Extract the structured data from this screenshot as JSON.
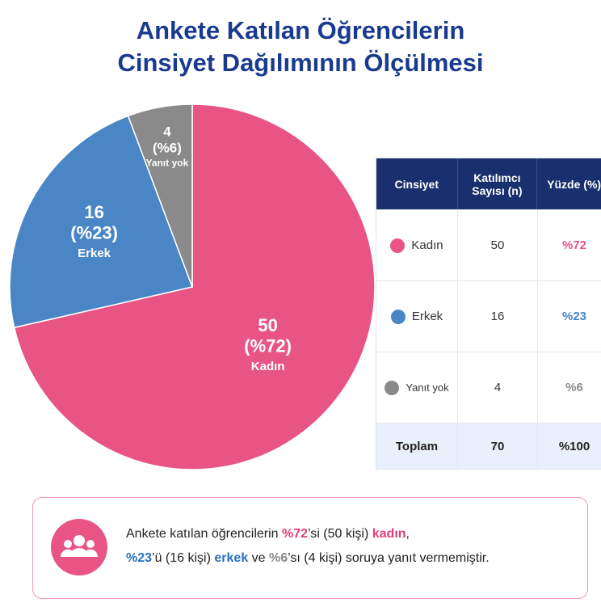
{
  "chart_data": {
    "type": "pie",
    "title": [
      "Ankete Katılan Öğrencilerin",
      "Cinsiyet Dağılımının Ölçülmesi"
    ],
    "categories": [
      "Kadın",
      "Erkek",
      "Yanıt yok"
    ],
    "values": [
      50,
      16,
      4
    ],
    "percent_labels": [
      "(%72)",
      "(%23)",
      "(%6)"
    ],
    "colors": [
      "#e85585",
      "#4a86c5",
      "#8a8a8a"
    ]
  },
  "table": {
    "headers": [
      "Cinsiyet",
      "Katılımcı Sayısı (n)",
      "Yüzde (%)"
    ],
    "rows": [
      [
        "Kadın",
        50,
        "%72"
      ],
      [
        "Erkek",
        16,
        "%23"
      ],
      [
        "Yanıt yok",
        4,
        "%6"
      ]
    ],
    "total": [
      "Toplam",
      70,
      "%100"
    ]
  },
  "summary": {
    "lines": [
      [
        {
          "text": "Ankete katılan öğrencilerin "
        },
        {
          "text": "%72",
          "color": "#e0407a"
        },
        {
          "text": "’si (50 kişi) "
        },
        {
          "text": "kadın",
          "color": "#e0407a"
        },
        {
          "text": ","
        }
      ],
      [
        {
          "text": "%23",
          "color": "#2a72c0"
        },
        {
          "text": "’ü (16 kişi) "
        },
        {
          "text": "erkek",
          "color": "#2a72c0"
        },
        {
          "text": " ve "
        },
        {
          "text": "%6",
          "color": "#8a8a8a"
        },
        {
          "text": "’sı (4 kişi) soruya yanıt vermemiştir."
        }
      ]
    ]
  }
}
